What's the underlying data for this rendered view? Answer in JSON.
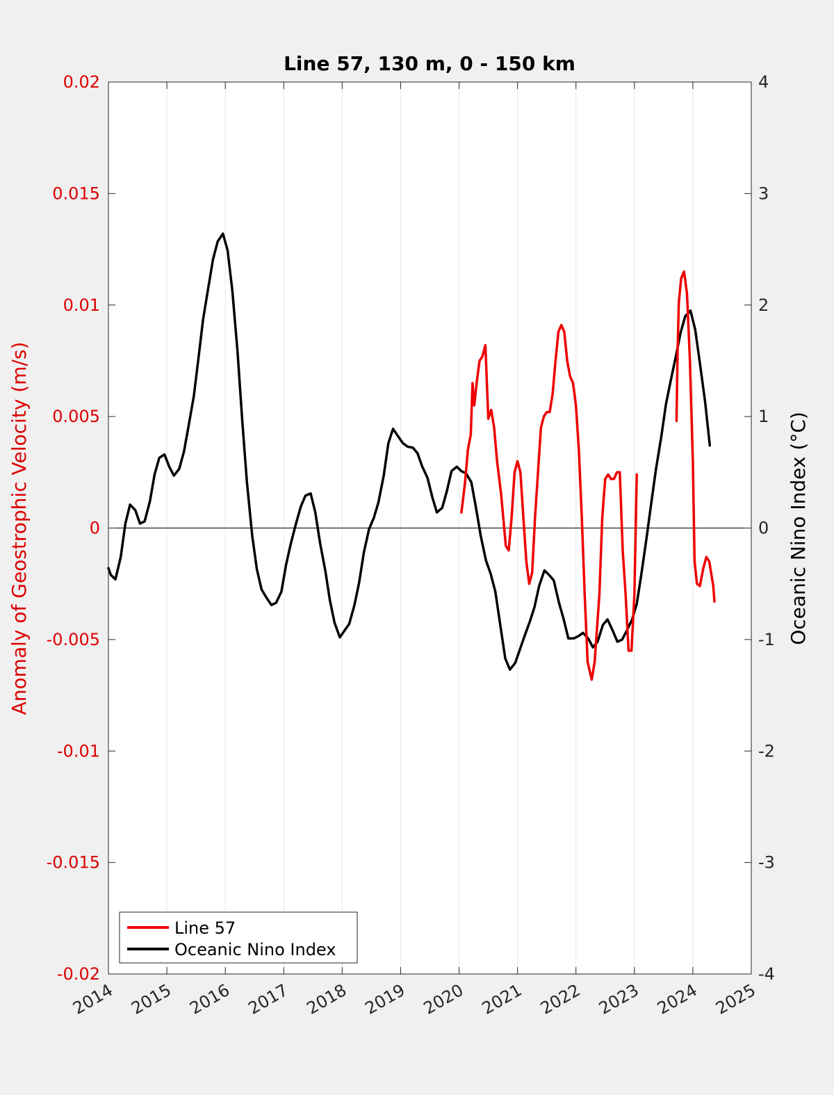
{
  "chart_data": {
    "type": "line",
    "title": "Line 57, 130 m, 0 - 150 km",
    "ylabel_left": "Anomaly of Geostrophic Velocity (m/s)",
    "ylabel_right": "Oceanic Nino Index (°C)",
    "xlim": [
      2014,
      2025
    ],
    "ylim_left": [
      -0.02,
      0.02
    ],
    "ylim_right": [
      -4,
      4
    ],
    "x_ticks": [
      "2014",
      "2015",
      "2016",
      "2017",
      "2018",
      "2019",
      "2020",
      "2021",
      "2022",
      "2023",
      "2024",
      "2025"
    ],
    "y_left_ticks": [
      "0.02",
      "0.015",
      "0.01",
      "0.005",
      "0",
      "-0.005",
      "-0.01",
      "-0.015",
      "-0.02"
    ],
    "y_right_ticks": [
      "4",
      "3",
      "2",
      "1",
      "0",
      "-1",
      "-2",
      "-3",
      "-4"
    ],
    "grid_x": true,
    "zero_line": true,
    "legend_position": "bottom-left",
    "colors": {
      "line57": "#ee0000",
      "oni": "#000000",
      "left_axis": "#dd0000"
    },
    "series": [
      {
        "name": "Line 57",
        "axis": "left",
        "segments": [
          [
            [
              2020.04,
              0.0007
            ],
            [
              2020.1,
              0.002
            ],
            [
              2020.15,
              0.0035
            ],
            [
              2020.2,
              0.0042
            ],
            [
              2020.23,
              0.0065
            ],
            [
              2020.26,
              0.0055
            ],
            [
              2020.3,
              0.0065
            ],
            [
              2020.35,
              0.0075
            ],
            [
              2020.4,
              0.0077
            ],
            [
              2020.45,
              0.0082
            ],
            [
              2020.5,
              0.0049
            ],
            [
              2020.55,
              0.0053
            ],
            [
              2020.6,
              0.0045
            ],
            [
              2020.65,
              0.003
            ],
            [
              2020.72,
              0.0015
            ],
            [
              2020.8,
              -0.0008
            ],
            [
              2020.85,
              -0.001
            ],
            [
              2020.9,
              0.0005
            ],
            [
              2020.95,
              0.0025
            ],
            [
              2021.0,
              0.003
            ],
            [
              2021.05,
              0.0025
            ],
            [
              2021.1,
              0.0005
            ],
            [
              2021.15,
              -0.0015
            ],
            [
              2021.2,
              -0.0025
            ],
            [
              2021.25,
              -0.002
            ],
            [
              2021.3,
              0.0005
            ],
            [
              2021.35,
              0.0025
            ],
            [
              2021.4,
              0.0045
            ],
            [
              2021.45,
              0.005
            ],
            [
              2021.5,
              0.0052
            ],
            [
              2021.55,
              0.0052
            ],
            [
              2021.6,
              0.006
            ],
            [
              2021.65,
              0.0075
            ],
            [
              2021.7,
              0.0088
            ],
            [
              2021.75,
              0.0091
            ],
            [
              2021.8,
              0.0088
            ],
            [
              2021.85,
              0.0075
            ],
            [
              2021.9,
              0.0068
            ],
            [
              2021.95,
              0.0065
            ],
            [
              2022.0,
              0.0055
            ],
            [
              2022.05,
              0.0035
            ],
            [
              2022.1,
              0.0005
            ],
            [
              2022.15,
              -0.003
            ],
            [
              2022.2,
              -0.006
            ],
            [
              2022.27,
              -0.0068
            ],
            [
              2022.32,
              -0.006
            ],
            [
              2022.4,
              -0.003
            ],
            [
              2022.45,
              0.0005
            ],
            [
              2022.5,
              0.0022
            ],
            [
              2022.55,
              0.0024
            ],
            [
              2022.6,
              0.0022
            ],
            [
              2022.65,
              0.0022
            ],
            [
              2022.7,
              0.0025
            ],
            [
              2022.75,
              0.0025
            ],
            [
              2022.8,
              -0.001
            ],
            [
              2022.85,
              -0.003
            ],
            [
              2022.9,
              -0.0055
            ],
            [
              2022.95,
              -0.0055
            ],
            [
              2023.0,
              -0.003
            ],
            [
              2023.04,
              0.0024
            ]
          ],
          [
            [
              2023.72,
              0.0048
            ],
            [
              2023.74,
              0.008
            ],
            [
              2023.76,
              0.0101
            ],
            [
              2023.8,
              0.0112
            ],
            [
              2023.85,
              0.0115
            ],
            [
              2023.9,
              0.0105
            ],
            [
              2023.95,
              0.0075
            ],
            [
              2024.0,
              0.003
            ],
            [
              2024.03,
              -0.0015
            ],
            [
              2024.07,
              -0.0025
            ],
            [
              2024.12,
              -0.0026
            ],
            [
              2024.18,
              -0.0018
            ],
            [
              2024.23,
              -0.0013
            ],
            [
              2024.28,
              -0.0015
            ],
            [
              2024.35,
              -0.0026
            ],
            [
              2024.37,
              -0.0033
            ]
          ]
        ]
      },
      {
        "name": "Oceanic Nino Index",
        "axis": "right",
        "segments": [
          [
            [
              2014.0,
              -0.36
            ],
            [
              2014.04,
              -0.42
            ],
            [
              2014.12,
              -0.46
            ],
            [
              2014.21,
              -0.26
            ],
            [
              2014.29,
              0.04
            ],
            [
              2014.37,
              0.21
            ],
            [
              2014.46,
              0.16
            ],
            [
              2014.54,
              0.04
            ],
            [
              2014.62,
              0.06
            ],
            [
              2014.71,
              0.24
            ],
            [
              2014.79,
              0.48
            ],
            [
              2014.87,
              0.63
            ],
            [
              2014.96,
              0.66
            ],
            [
              2015.04,
              0.55
            ],
            [
              2015.12,
              0.47
            ],
            [
              2015.21,
              0.53
            ],
            [
              2015.29,
              0.68
            ],
            [
              2015.37,
              0.91
            ],
            [
              2015.46,
              1.18
            ],
            [
              2015.54,
              1.52
            ],
            [
              2015.62,
              1.87
            ],
            [
              2015.71,
              2.16
            ],
            [
              2015.79,
              2.41
            ],
            [
              2015.87,
              2.57
            ],
            [
              2015.96,
              2.64
            ],
            [
              2016.04,
              2.49
            ],
            [
              2016.12,
              2.13
            ],
            [
              2016.21,
              1.58
            ],
            [
              2016.29,
              0.96
            ],
            [
              2016.37,
              0.41
            ],
            [
              2016.46,
              -0.07
            ],
            [
              2016.54,
              -0.37
            ],
            [
              2016.62,
              -0.55
            ],
            [
              2016.71,
              -0.63
            ],
            [
              2016.79,
              -0.69
            ],
            [
              2016.87,
              -0.67
            ],
            [
              2016.96,
              -0.57
            ],
            [
              2017.04,
              -0.33
            ],
            [
              2017.12,
              -0.14
            ],
            [
              2017.21,
              0.04
            ],
            [
              2017.29,
              0.19
            ],
            [
              2017.37,
              0.29
            ],
            [
              2017.46,
              0.31
            ],
            [
              2017.54,
              0.14
            ],
            [
              2017.62,
              -0.13
            ],
            [
              2017.71,
              -0.38
            ],
            [
              2017.79,
              -0.65
            ],
            [
              2017.87,
              -0.85
            ],
            [
              2017.96,
              -0.98
            ],
            [
              2018.04,
              -0.92
            ],
            [
              2018.12,
              -0.86
            ],
            [
              2018.21,
              -0.69
            ],
            [
              2018.29,
              -0.49
            ],
            [
              2018.37,
              -0.22
            ],
            [
              2018.46,
              -0.01
            ],
            [
              2018.54,
              0.09
            ],
            [
              2018.62,
              0.23
            ],
            [
              2018.71,
              0.47
            ],
            [
              2018.79,
              0.76
            ],
            [
              2018.87,
              0.89
            ],
            [
              2018.96,
              0.82
            ],
            [
              2019.04,
              0.76
            ],
            [
              2019.12,
              0.73
            ],
            [
              2019.21,
              0.72
            ],
            [
              2019.29,
              0.67
            ],
            [
              2019.37,
              0.55
            ],
            [
              2019.46,
              0.45
            ],
            [
              2019.54,
              0.28
            ],
            [
              2019.62,
              0.14
            ],
            [
              2019.71,
              0.18
            ],
            [
              2019.79,
              0.33
            ],
            [
              2019.87,
              0.51
            ],
            [
              2019.96,
              0.55
            ],
            [
              2020.04,
              0.51
            ],
            [
              2020.12,
              0.49
            ],
            [
              2020.21,
              0.41
            ],
            [
              2020.29,
              0.18
            ],
            [
              2020.37,
              -0.07
            ],
            [
              2020.46,
              -0.29
            ],
            [
              2020.54,
              -0.41
            ],
            [
              2020.62,
              -0.57
            ],
            [
              2020.71,
              -0.89
            ],
            [
              2020.79,
              -1.17
            ],
            [
              2020.87,
              -1.27
            ],
            [
              2020.96,
              -1.21
            ],
            [
              2021.04,
              -1.09
            ],
            [
              2021.12,
              -0.97
            ],
            [
              2021.21,
              -0.84
            ],
            [
              2021.29,
              -0.71
            ],
            [
              2021.37,
              -0.52
            ],
            [
              2021.46,
              -0.38
            ],
            [
              2021.54,
              -0.42
            ],
            [
              2021.62,
              -0.47
            ],
            [
              2021.71,
              -0.67
            ],
            [
              2021.79,
              -0.82
            ],
            [
              2021.87,
              -0.99
            ],
            [
              2021.96,
              -0.99
            ],
            [
              2022.04,
              -0.97
            ],
            [
              2022.12,
              -0.94
            ],
            [
              2022.21,
              -0.99
            ],
            [
              2022.29,
              -1.07
            ],
            [
              2022.37,
              -1.02
            ],
            [
              2022.46,
              -0.87
            ],
            [
              2022.54,
              -0.82
            ],
            [
              2022.62,
              -0.91
            ],
            [
              2022.71,
              -1.02
            ],
            [
              2022.79,
              -1.0
            ],
            [
              2022.87,
              -0.92
            ],
            [
              2022.96,
              -0.82
            ],
            [
              2023.04,
              -0.68
            ],
            [
              2023.12,
              -0.41
            ],
            [
              2023.21,
              -0.08
            ],
            [
              2023.29,
              0.23
            ],
            [
              2023.37,
              0.53
            ],
            [
              2023.46,
              0.82
            ],
            [
              2023.54,
              1.11
            ],
            [
              2023.62,
              1.32
            ],
            [
              2023.71,
              1.54
            ],
            [
              2023.79,
              1.75
            ],
            [
              2023.87,
              1.9
            ],
            [
              2023.96,
              1.95
            ],
            [
              2024.04,
              1.78
            ],
            [
              2024.12,
              1.48
            ],
            [
              2024.21,
              1.13
            ],
            [
              2024.29,
              0.74
            ]
          ]
        ]
      }
    ]
  }
}
